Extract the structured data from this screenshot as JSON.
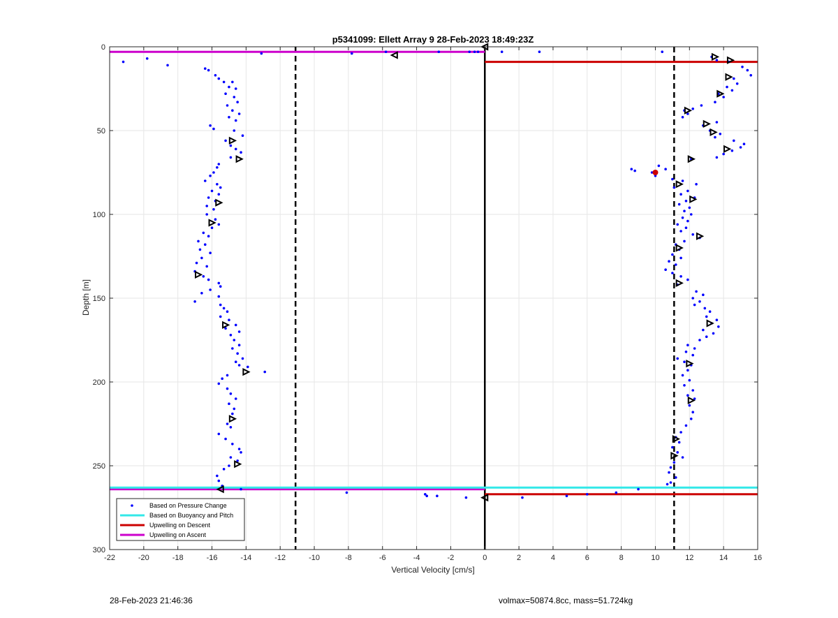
{
  "chart_data": {
    "type": "scatter",
    "title": "p5341099: Ellett Array 9 28-Feb-2023 18:49:23Z",
    "xlabel": "Vertical Velocity [cm/s]",
    "ylabel": "Depth [m]",
    "xlim": [
      -22,
      16
    ],
    "ylim": [
      0,
      300
    ],
    "y_reversed": true,
    "grid": true,
    "xticks": [
      -22,
      -20,
      -18,
      -16,
      -14,
      -12,
      -10,
      -8,
      -6,
      -4,
      -2,
      0,
      2,
      4,
      6,
      8,
      10,
      12,
      14,
      16
    ],
    "yticks": [
      0,
      50,
      100,
      150,
      200,
      250,
      300
    ],
    "legend_position": "bottom-left",
    "legend": [
      {
        "label": "Based on Pressure Change",
        "color": "#0000ff",
        "marker": "dot"
      },
      {
        "label": "Based on Buoyancy and Pitch",
        "color": "#33e8e8",
        "marker": "line"
      },
      {
        "label": "Upwelling on Descent",
        "color": "#cc0000",
        "marker": "line"
      },
      {
        "label": "Upwelling on Ascent",
        "color": "#cc00cc",
        "marker": "line"
      }
    ],
    "reference_lines": {
      "dashed_verticals": [
        -11.1,
        11.1
      ],
      "solid_vertical": 0
    },
    "series": [
      {
        "name": "Based on Pressure Change",
        "marker": "dot",
        "color": "#0000ff",
        "points": [
          [
            -21.2,
            9
          ],
          [
            -19.8,
            7
          ],
          [
            -18.6,
            11
          ],
          [
            -13.1,
            4
          ],
          [
            -7.8,
            4
          ],
          [
            -5.8,
            3
          ],
          [
            -2.7,
            3
          ],
          [
            -0.9,
            3
          ],
          [
            -0.6,
            3
          ],
          [
            -0.4,
            3
          ],
          [
            1.0,
            3
          ],
          [
            3.2,
            3
          ],
          [
            10.4,
            3
          ],
          [
            -16.4,
            13
          ],
          [
            -16.2,
            14
          ],
          [
            -15.8,
            17
          ],
          [
            -15.6,
            19
          ],
          [
            -15.3,
            21
          ],
          [
            -14.8,
            21
          ],
          [
            -15.0,
            24
          ],
          [
            -14.6,
            25
          ],
          [
            -15.2,
            28
          ],
          [
            -14.7,
            30
          ],
          [
            -14.5,
            33
          ],
          [
            -15.1,
            35
          ],
          [
            -14.8,
            38
          ],
          [
            -14.4,
            40
          ],
          [
            -15.0,
            42
          ],
          [
            -14.6,
            44
          ],
          [
            -16.1,
            47
          ],
          [
            -15.9,
            49
          ],
          [
            -14.7,
            50
          ],
          [
            -14.2,
            53
          ],
          [
            -15.2,
            56
          ],
          [
            -14.9,
            59
          ],
          [
            -14.6,
            61
          ],
          [
            -14.3,
            63
          ],
          [
            -14.9,
            66
          ],
          [
            -15.6,
            70
          ],
          [
            -15.7,
            72
          ],
          [
            -15.9,
            75
          ],
          [
            -16.1,
            77
          ],
          [
            -16.4,
            80
          ],
          [
            -15.7,
            82
          ],
          [
            -15.5,
            84
          ],
          [
            -16.0,
            86
          ],
          [
            -15.6,
            88
          ],
          [
            -16.2,
            90
          ],
          [
            -15.8,
            92
          ],
          [
            -16.3,
            95
          ],
          [
            -15.9,
            97
          ],
          [
            -16.3,
            100
          ],
          [
            -15.8,
            103
          ],
          [
            -15.6,
            106
          ],
          [
            -16.0,
            108
          ],
          [
            -16.5,
            111
          ],
          [
            -16.2,
            113
          ],
          [
            -16.8,
            116
          ],
          [
            -16.4,
            118
          ],
          [
            -16.7,
            121
          ],
          [
            -16.1,
            123
          ],
          [
            -16.6,
            126
          ],
          [
            -16.9,
            129
          ],
          [
            -16.3,
            131
          ],
          [
            -17.0,
            134
          ],
          [
            -16.5,
            137
          ],
          [
            -16.2,
            139
          ],
          [
            -15.6,
            141
          ],
          [
            -15.5,
            143
          ],
          [
            -16.1,
            145
          ],
          [
            -16.6,
            147
          ],
          [
            -17.0,
            152
          ],
          [
            -15.6,
            149
          ],
          [
            -15.5,
            154
          ],
          [
            -15.3,
            156
          ],
          [
            -15.1,
            158
          ],
          [
            -15.5,
            161
          ],
          [
            -15.0,
            163
          ],
          [
            -14.6,
            166
          ],
          [
            -15.2,
            168
          ],
          [
            -14.4,
            170
          ],
          [
            -14.9,
            172
          ],
          [
            -14.7,
            175
          ],
          [
            -14.4,
            178
          ],
          [
            -14.8,
            180
          ],
          [
            -14.5,
            183
          ],
          [
            -14.2,
            186
          ],
          [
            -14.6,
            188
          ],
          [
            -14.4,
            190
          ],
          [
            -13.9,
            191
          ],
          [
            -12.9,
            194
          ],
          [
            -15.1,
            196
          ],
          [
            -15.4,
            198
          ],
          [
            -15.6,
            201
          ],
          [
            -15.1,
            204
          ],
          [
            -14.9,
            207
          ],
          [
            -14.6,
            210
          ],
          [
            -15.0,
            213
          ],
          [
            -14.7,
            216
          ],
          [
            -14.8,
            219
          ],
          [
            -15.1,
            225
          ],
          [
            -14.9,
            227
          ],
          [
            -15.6,
            231
          ],
          [
            -15.2,
            234
          ],
          [
            -14.8,
            237
          ],
          [
            -14.4,
            240
          ],
          [
            -14.3,
            242
          ],
          [
            -14.9,
            245
          ],
          [
            -14.5,
            247
          ],
          [
            -15.0,
            250
          ],
          [
            -15.3,
            252
          ],
          [
            -15.7,
            256
          ],
          [
            -15.6,
            259
          ],
          [
            -15.4,
            262
          ],
          [
            -14.3,
            264
          ],
          [
            -8.1,
            266
          ],
          [
            -3.5,
            267
          ],
          [
            -3.4,
            268
          ],
          [
            -2.8,
            268
          ],
          [
            -1.1,
            269
          ],
          [
            2.2,
            269
          ],
          [
            4.8,
            268
          ],
          [
            6.0,
            267
          ],
          [
            7.7,
            266
          ],
          [
            9.0,
            264
          ],
          [
            10.7,
            261
          ],
          [
            13.3,
            6
          ],
          [
            13.6,
            8
          ],
          [
            14.3,
            9
          ],
          [
            15.1,
            12
          ],
          [
            15.4,
            14
          ],
          [
            15.6,
            17
          ],
          [
            14.6,
            19
          ],
          [
            14.8,
            22
          ],
          [
            14.2,
            24
          ],
          [
            14.5,
            26
          ],
          [
            13.7,
            28
          ],
          [
            14.0,
            30
          ],
          [
            13.5,
            33
          ],
          [
            12.7,
            35
          ],
          [
            12.2,
            37
          ],
          [
            11.7,
            38
          ],
          [
            11.9,
            40
          ],
          [
            11.6,
            42
          ],
          [
            13.6,
            45
          ],
          [
            12.8,
            47
          ],
          [
            13.2,
            50
          ],
          [
            13.8,
            52
          ],
          [
            13.5,
            54
          ],
          [
            14.6,
            56
          ],
          [
            15.2,
            58
          ],
          [
            15.0,
            60
          ],
          [
            14.5,
            62
          ],
          [
            14.0,
            64
          ],
          [
            13.6,
            66
          ],
          [
            12.1,
            67
          ],
          [
            10.2,
            71
          ],
          [
            10.6,
            73
          ],
          [
            8.6,
            73
          ],
          [
            8.8,
            74
          ],
          [
            9.8,
            75
          ],
          [
            10.0,
            77
          ],
          [
            11.0,
            79
          ],
          [
            11.6,
            80
          ],
          [
            12.4,
            82
          ],
          [
            11.1,
            84
          ],
          [
            11.9,
            86
          ],
          [
            11.5,
            88
          ],
          [
            12.3,
            90
          ],
          [
            11.8,
            92
          ],
          [
            11.4,
            94
          ],
          [
            12.0,
            96
          ],
          [
            11.7,
            98
          ],
          [
            12.1,
            100
          ],
          [
            11.6,
            102
          ],
          [
            11.9,
            104
          ],
          [
            11.3,
            106
          ],
          [
            11.8,
            108
          ],
          [
            11.5,
            110
          ],
          [
            12.2,
            112
          ],
          [
            12.6,
            114
          ],
          [
            11.7,
            116
          ],
          [
            11.2,
            118
          ],
          [
            11.4,
            121
          ],
          [
            11.0,
            124
          ],
          [
            11.5,
            126
          ],
          [
            10.8,
            128
          ],
          [
            11.2,
            130
          ],
          [
            10.6,
            133
          ],
          [
            11.0,
            135
          ],
          [
            11.5,
            137
          ],
          [
            11.9,
            139
          ],
          [
            11.3,
            142
          ],
          [
            12.4,
            146
          ],
          [
            12.8,
            148
          ],
          [
            12.2,
            150
          ],
          [
            12.6,
            152
          ],
          [
            12.3,
            154
          ],
          [
            12.9,
            156
          ],
          [
            13.2,
            158
          ],
          [
            13.0,
            161
          ],
          [
            13.6,
            163
          ],
          [
            13.3,
            165
          ],
          [
            13.7,
            167
          ],
          [
            12.8,
            169
          ],
          [
            13.4,
            171
          ],
          [
            13.0,
            173
          ],
          [
            12.6,
            175
          ],
          [
            11.9,
            178
          ],
          [
            12.3,
            180
          ],
          [
            11.8,
            182
          ],
          [
            12.2,
            184
          ],
          [
            11.3,
            186
          ],
          [
            11.7,
            188
          ],
          [
            12.1,
            190
          ],
          [
            11.9,
            193
          ],
          [
            11.6,
            196
          ],
          [
            12.0,
            199
          ],
          [
            11.7,
            202
          ],
          [
            12.2,
            205
          ],
          [
            11.9,
            208
          ],
          [
            12.3,
            210
          ],
          [
            12.0,
            214
          ],
          [
            12.2,
            218
          ],
          [
            12.1,
            222
          ],
          [
            11.8,
            226
          ],
          [
            11.5,
            230
          ],
          [
            11.2,
            233
          ],
          [
            11.4,
            236
          ],
          [
            11.0,
            239
          ],
          [
            11.3,
            242
          ],
          [
            11.6,
            245
          ],
          [
            11.1,
            248
          ],
          [
            10.9,
            251
          ],
          [
            10.8,
            254
          ],
          [
            11.2,
            257
          ],
          [
            10.9,
            260
          ]
        ]
      },
      {
        "name": "Upwelling on Ascent",
        "marker": "line",
        "color": "#cc00cc",
        "segments": [
          {
            "y": 3,
            "x0": -22,
            "x1": 0
          },
          {
            "y": 264,
            "x0": -22,
            "x1": 0
          }
        ]
      },
      {
        "name": "Upwelling on Descent",
        "marker": "line",
        "color": "#cc0000",
        "segments": [
          {
            "y": 9,
            "x0": 0,
            "x1": 16
          },
          {
            "y": 267,
            "x0": 0,
            "x1": 16
          }
        ]
      },
      {
        "name": "Based on Buoyancy and Pitch",
        "marker": "line",
        "color": "#33e8e8",
        "segments": [
          {
            "y": 263,
            "x0": -22,
            "x1": 16
          }
        ]
      },
      {
        "marker": "triangle-left",
        "color": "#000000",
        "points": [
          [
            0.0,
            0
          ],
          [
            -5.3,
            5
          ],
          [
            -15.5,
            264
          ],
          [
            0.0,
            269
          ]
        ]
      },
      {
        "marker": "triangle-right",
        "color": "#000000",
        "points": [
          [
            -14.8,
            56
          ],
          [
            -14.4,
            67
          ],
          [
            -15.6,
            93
          ],
          [
            -16.0,
            105
          ],
          [
            -16.8,
            136
          ],
          [
            -15.2,
            166
          ],
          [
            -14.0,
            194
          ],
          [
            -14.8,
            222
          ],
          [
            -14.5,
            249
          ],
          [
            13.5,
            6
          ],
          [
            14.4,
            8
          ],
          [
            14.3,
            18
          ],
          [
            13.8,
            28
          ],
          [
            11.9,
            38
          ],
          [
            13.0,
            46
          ],
          [
            13.4,
            51
          ],
          [
            14.2,
            61
          ],
          [
            12.1,
            67
          ],
          [
            11.4,
            82
          ],
          [
            12.2,
            91
          ],
          [
            12.6,
            113
          ],
          [
            11.4,
            120
          ],
          [
            11.4,
            141
          ],
          [
            13.2,
            165
          ],
          [
            12.0,
            189
          ],
          [
            12.1,
            211
          ],
          [
            11.2,
            234
          ],
          [
            11.1,
            244
          ]
        ]
      },
      {
        "marker": "dot-red",
        "color": "#cc0000",
        "points": [
          [
            10.0,
            75
          ]
        ]
      }
    ]
  },
  "footer": {
    "left": "28-Feb-2023 21:46:36",
    "right": "volmax=50874.8cc, mass=51.724kg"
  }
}
